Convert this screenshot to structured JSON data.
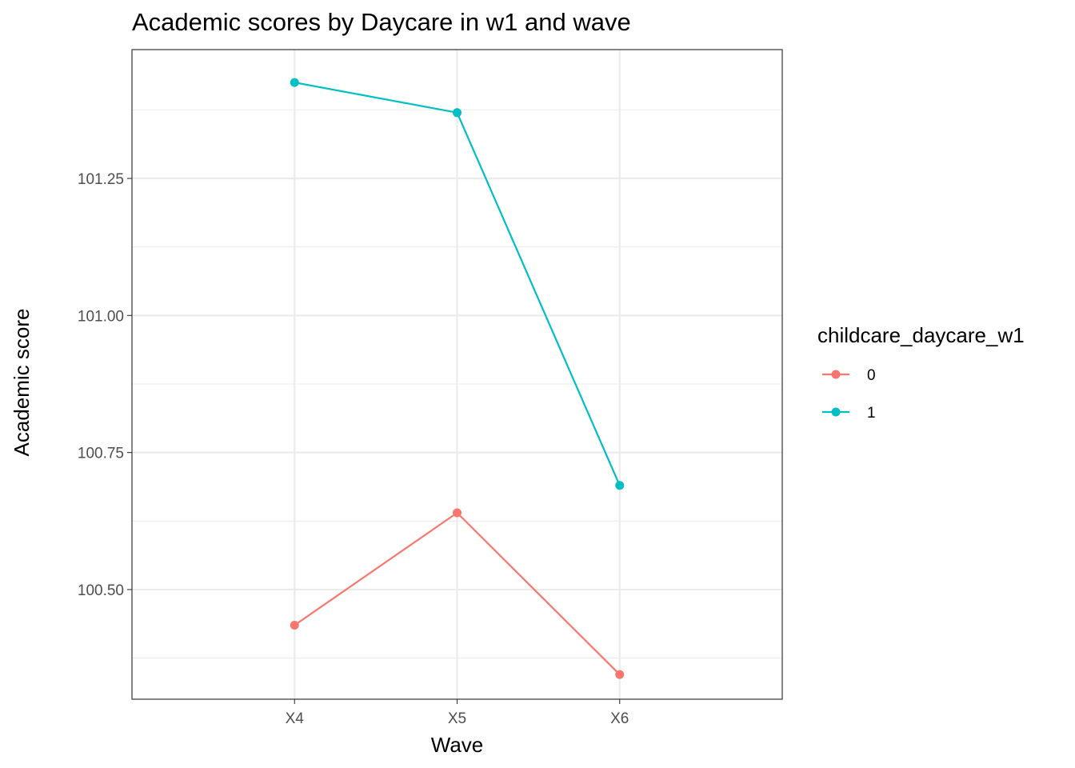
{
  "chart_data": {
    "type": "line",
    "title": "Academic scores by Daycare in w1 and wave",
    "xlabel": "Wave",
    "ylabel": "Academic score",
    "categories": [
      "X4",
      "X5",
      "X6"
    ],
    "ylim": [
      100.3,
      101.485
    ],
    "yticks": [
      100.5,
      100.75,
      101.0,
      101.25
    ],
    "ytick_labels": [
      "100.50",
      "100.75",
      "101.00",
      "101.25"
    ],
    "grid": true,
    "legend": {
      "title": "childcare_daycare_w1",
      "position": "right"
    },
    "series": [
      {
        "name": "0",
        "color": "#F8766D",
        "values": [
          100.435,
          100.64,
          100.345
        ]
      },
      {
        "name": "1",
        "color": "#00BFC4",
        "values": [
          101.425,
          101.37,
          100.69
        ]
      }
    ]
  }
}
